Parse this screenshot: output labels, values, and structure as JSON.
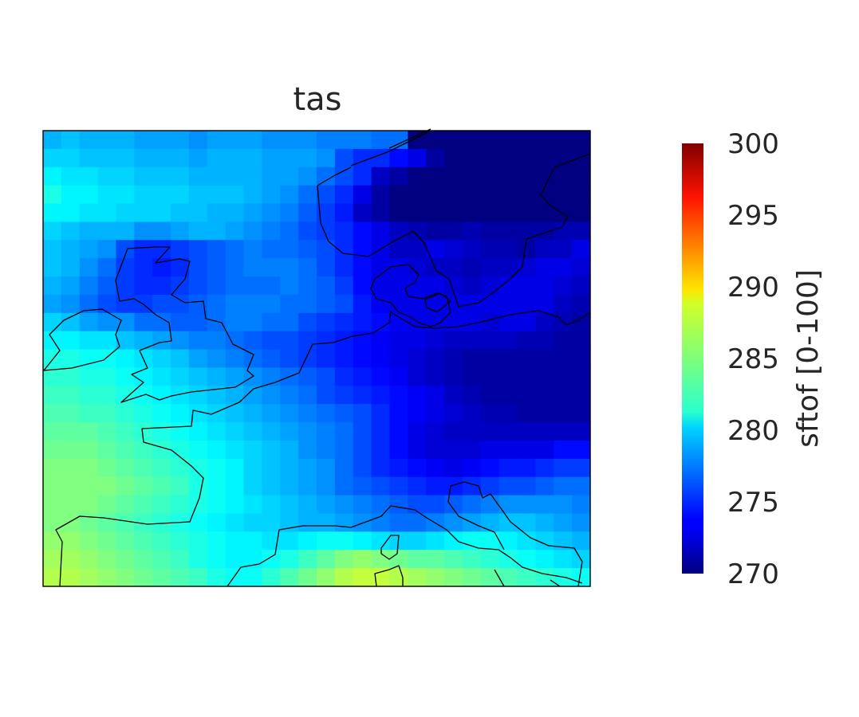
{
  "chart_data": {
    "type": "heatmap",
    "title": "tas",
    "colorbar": {
      "label": "sftof [0-100]",
      "min": 270,
      "max": 300,
      "ticks": [
        270,
        275,
        280,
        285,
        290,
        295,
        300
      ],
      "tick_labels": [
        "270",
        "275",
        "280",
        "285",
        "290",
        "295",
        "300"
      ],
      "colormap": "jet"
    },
    "grid": {
      "rows": 25,
      "cols": 30,
      "values": [
        [
          279,
          279.5,
          279,
          279,
          279,
          278.5,
          278.5,
          278.5,
          278,
          278.5,
          278.5,
          278.5,
          278,
          278,
          278,
          277.5,
          277.5,
          277.5,
          277,
          277,
          270,
          270,
          270,
          270,
          270,
          270,
          270,
          270,
          270,
          270
        ],
        [
          280,
          280,
          279.5,
          279.5,
          279.5,
          279,
          279,
          279,
          278.5,
          279,
          279,
          279,
          278.5,
          278.5,
          278.5,
          278,
          276,
          275,
          275,
          274,
          273,
          271,
          270,
          270,
          270,
          270,
          270,
          270,
          270,
          270
        ],
        [
          281,
          280.5,
          280.5,
          280,
          280,
          279.5,
          279.5,
          279.5,
          279,
          279,
          279,
          279,
          278.5,
          278.5,
          278,
          277,
          276,
          275,
          272,
          271,
          270,
          270,
          270,
          270,
          270,
          270,
          270,
          270,
          270,
          270
        ],
        [
          282,
          281,
          281,
          280.5,
          280.5,
          280,
          280,
          280,
          279.5,
          279.5,
          279.5,
          279,
          278.5,
          278,
          277,
          276,
          275,
          273,
          271,
          270,
          270,
          270,
          270,
          270,
          270,
          270,
          270,
          270,
          270,
          270
        ],
        [
          281,
          281,
          280.5,
          280.5,
          280,
          280,
          280,
          279.5,
          279.5,
          279,
          279,
          278.5,
          278,
          277.5,
          276.5,
          275.5,
          274.5,
          272,
          271,
          270,
          270,
          270,
          270,
          270,
          270,
          270,
          270,
          270,
          270,
          270
        ],
        [
          280,
          279.5,
          279,
          279,
          279,
          278,
          278,
          278.5,
          279,
          279,
          278.5,
          278,
          277.5,
          277,
          276,
          275.5,
          275,
          274,
          273,
          272,
          271.5,
          271,
          271,
          271.5,
          271,
          271,
          271,
          271,
          271.5,
          271.5
        ],
        [
          279.5,
          279,
          278.5,
          278,
          276,
          275,
          275,
          275.5,
          276,
          276.5,
          277,
          277.5,
          277,
          277,
          276.5,
          276,
          275,
          274,
          273,
          272,
          272,
          273,
          272.5,
          272,
          271.5,
          271.5,
          271,
          272,
          272,
          273
        ],
        [
          279.5,
          279,
          278,
          277,
          275.5,
          275,
          274.5,
          275,
          276,
          276.5,
          277,
          277.5,
          277.5,
          277.5,
          277,
          276,
          275,
          274,
          273,
          273,
          272.5,
          272,
          272,
          271.5,
          272,
          272,
          272.5,
          273,
          273,
          272.5
        ],
        [
          279,
          278.5,
          277.5,
          276.5,
          275.5,
          275,
          275,
          275.5,
          276,
          276.5,
          277,
          277,
          277,
          277.5,
          277,
          276.5,
          275.5,
          274,
          273,
          273,
          273,
          273,
          272.5,
          272,
          272.5,
          273,
          273,
          273,
          272.5,
          272
        ],
        [
          278.5,
          278,
          277,
          276,
          275.5,
          275.5,
          276,
          276,
          276.5,
          277,
          277.5,
          277.5,
          277.5,
          277,
          277,
          276.5,
          276,
          274.5,
          273.5,
          273,
          273,
          273,
          273,
          273,
          273,
          273,
          273,
          273,
          272,
          271.5
        ],
        [
          280,
          279.5,
          278.5,
          278,
          278,
          277,
          277,
          276.5,
          276.5,
          277,
          277.5,
          277.5,
          277,
          277,
          276,
          275.5,
          275,
          274.5,
          274,
          273.5,
          273,
          273,
          273,
          273,
          272.5,
          273,
          273,
          272,
          271.5,
          271
        ],
        [
          281,
          281,
          280.5,
          280.5,
          279.5,
          279,
          278.5,
          278,
          277.5,
          277.5,
          277,
          276.5,
          276,
          276,
          275.5,
          275,
          274.5,
          274,
          273.5,
          273,
          273,
          272.5,
          272,
          272,
          272,
          272,
          271.5,
          271.5,
          271,
          271
        ],
        [
          282,
          282,
          281.5,
          281.5,
          281,
          280.5,
          280,
          279.5,
          278.5,
          278,
          277.5,
          277,
          276.5,
          276,
          275.5,
          275,
          274.5,
          274,
          273.5,
          273,
          272.5,
          272,
          271.5,
          271,
          271,
          271,
          271,
          271,
          271,
          271
        ],
        [
          282.5,
          282.5,
          282,
          282,
          281.5,
          281,
          280.5,
          280,
          279.5,
          279,
          278.5,
          278,
          277.5,
          277,
          276.5,
          276,
          275,
          274.5,
          274,
          273.5,
          272.5,
          272,
          271.5,
          271,
          271,
          271,
          271,
          271,
          271,
          271
        ],
        [
          283,
          283,
          282.5,
          282.5,
          282,
          281.5,
          281,
          280.5,
          280,
          279.5,
          279,
          278.5,
          278,
          277.5,
          277,
          276,
          275.5,
          275,
          274.5,
          274,
          273.5,
          273,
          272,
          271.5,
          271,
          271,
          271,
          271,
          271,
          271
        ],
        [
          283.5,
          283.5,
          283,
          283,
          282.5,
          282,
          281.5,
          281,
          280.5,
          280,
          279.5,
          279,
          278.5,
          278,
          277.5,
          277,
          276.5,
          276,
          275,
          274,
          273.5,
          273,
          272.5,
          272,
          271.5,
          271.5,
          271,
          271,
          271,
          271
        ],
        [
          284,
          284,
          284,
          283.5,
          283,
          282.5,
          282,
          281.5,
          281,
          280.5,
          280,
          279.5,
          279,
          278.5,
          278,
          277.5,
          277,
          276,
          275,
          274,
          273,
          272.5,
          272,
          272,
          272,
          272,
          272,
          272,
          272,
          272
        ],
        [
          284.5,
          284.5,
          284.5,
          284,
          283.5,
          283,
          282.5,
          282,
          281.5,
          281,
          280.5,
          280,
          279.5,
          279,
          278,
          277.5,
          277,
          276,
          275,
          274,
          273,
          272.5,
          272.5,
          272.5,
          273,
          273,
          273,
          273,
          274,
          274
        ],
        [
          285,
          285,
          285,
          284.5,
          284,
          283.5,
          283,
          282.5,
          282,
          281.5,
          281,
          280,
          279.5,
          279,
          278.5,
          278,
          277,
          276,
          275,
          274.5,
          274,
          273.5,
          273,
          273.5,
          274,
          274.5,
          274.5,
          275,
          275.5,
          275.5
        ],
        [
          285,
          285,
          285,
          285,
          284.5,
          284,
          283.5,
          283,
          282,
          281.5,
          281,
          280,
          279.5,
          279,
          278.5,
          278,
          277,
          276.5,
          276,
          275.5,
          275,
          274.5,
          274.5,
          275,
          275.5,
          276,
          276,
          276.5,
          277,
          277
        ],
        [
          285,
          285,
          285,
          284.5,
          284,
          283.5,
          283,
          282.5,
          282,
          281.5,
          281,
          280.5,
          280,
          279.5,
          279,
          278.5,
          278,
          277.5,
          277,
          276.5,
          276,
          276,
          276.5,
          277,
          277.5,
          278,
          278,
          278,
          278,
          277.5
        ],
        [
          285,
          285,
          284.5,
          284,
          283.5,
          283,
          282.5,
          282,
          281.5,
          281,
          280.5,
          280,
          280,
          279.5,
          279,
          279,
          278.5,
          278,
          277.5,
          277,
          277,
          277.5,
          278,
          278.5,
          279,
          279.5,
          279.5,
          279,
          278.5,
          278
        ],
        [
          285.5,
          285.5,
          285,
          284.5,
          284,
          283.5,
          283,
          282.5,
          282,
          281.5,
          281,
          281,
          280.5,
          280.5,
          281,
          281.5,
          281.5,
          281,
          280.5,
          280,
          280,
          280.5,
          281,
          281.5,
          281.5,
          281,
          280.5,
          280,
          279.5,
          279
        ],
        [
          286,
          286,
          285.5,
          285,
          284.5,
          284,
          283.5,
          283,
          282,
          281.5,
          281,
          281,
          281.5,
          282,
          283,
          284,
          285,
          285.5,
          285,
          284.5,
          284,
          284,
          283.5,
          283,
          282.5,
          282,
          281.5,
          281,
          280.5,
          280
        ],
        [
          286.5,
          286.5,
          286,
          285.5,
          285,
          284.5,
          284,
          283.5,
          283,
          282,
          281.5,
          281.5,
          282.5,
          283.5,
          284.5,
          285.5,
          286.5,
          287,
          287,
          286.5,
          286,
          285.5,
          285,
          284.5,
          284,
          283.5,
          283,
          282.5,
          282,
          281.5
        ]
      ]
    },
    "map_features": "coastlines"
  }
}
